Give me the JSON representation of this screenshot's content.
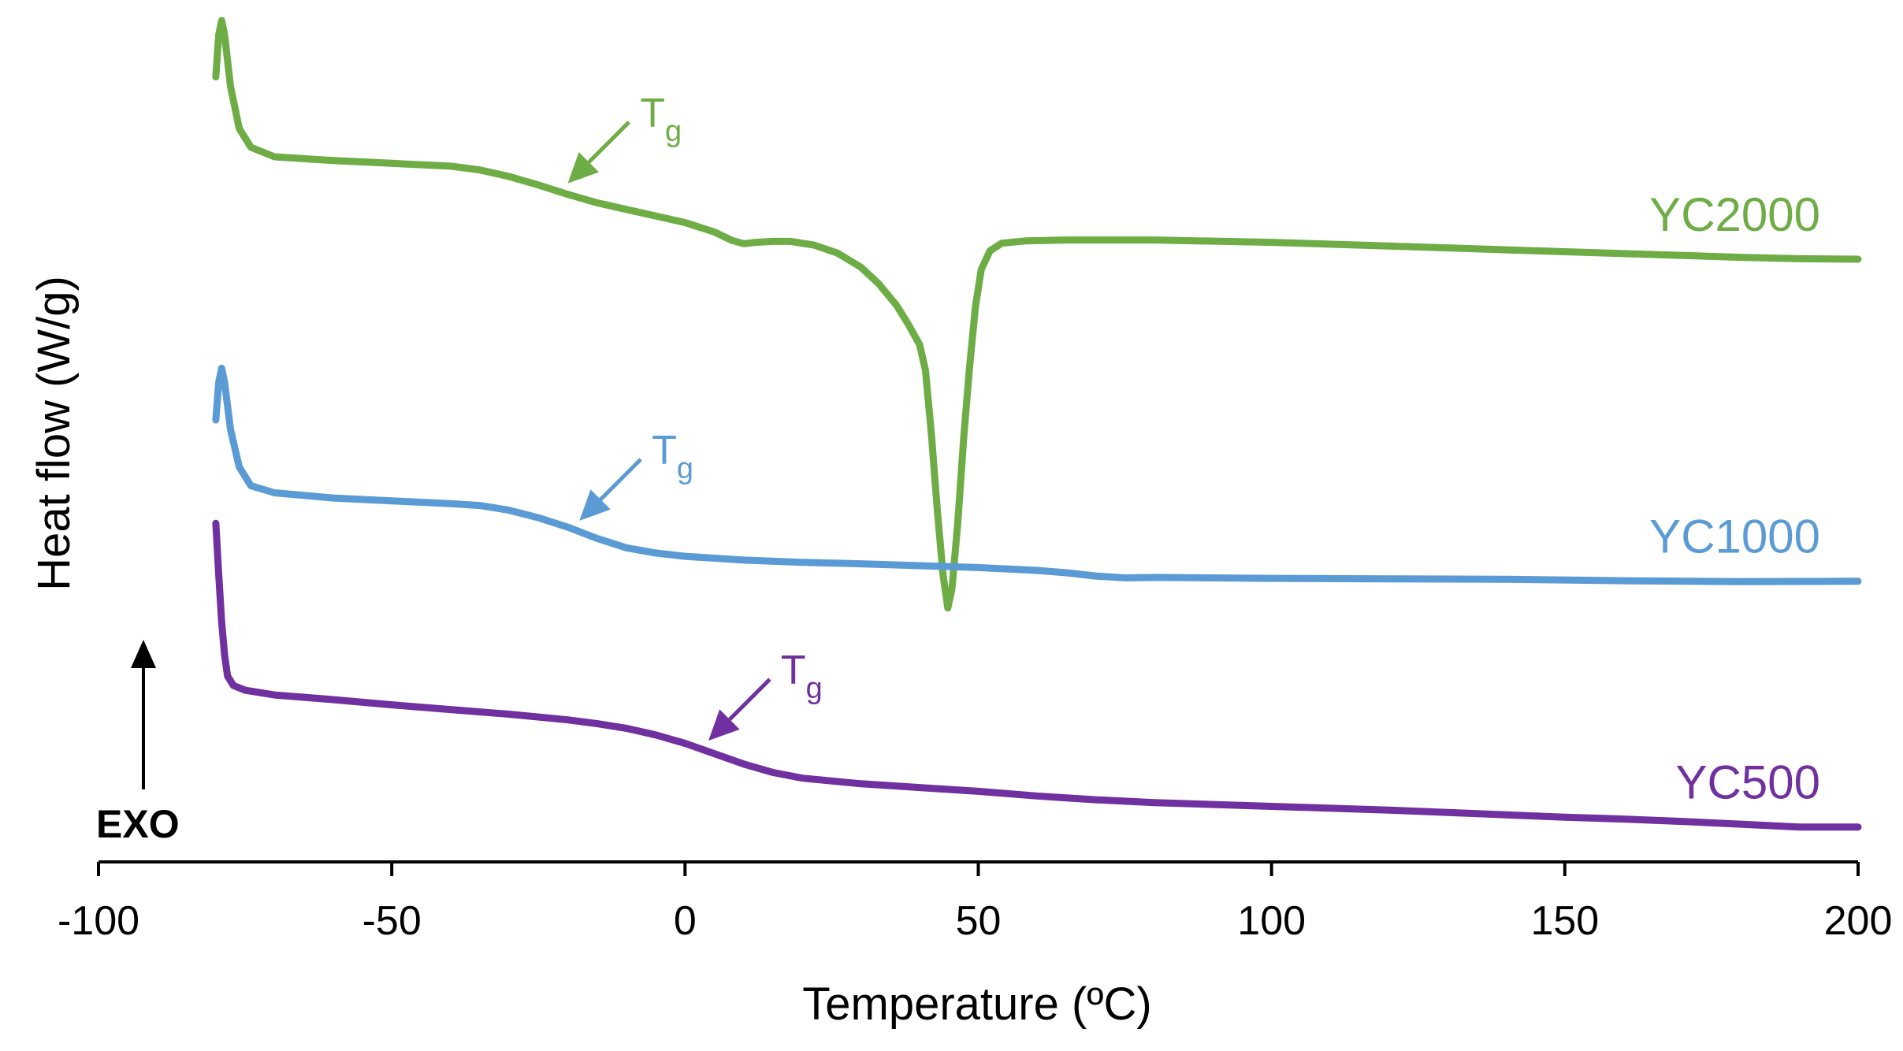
{
  "chart_data": {
    "type": "line",
    "title": "",
    "xlabel": "Temperature  (ºC)",
    "ylabel": "Heat flow (W/g)",
    "xlim": [
      -100,
      200
    ],
    "x_ticks": [
      -100,
      -50,
      0,
      50,
      100,
      150,
      200
    ],
    "y_ticks_shown": false,
    "grid": false,
    "legend": "inline labels at right end of each curve",
    "exo_indicator": {
      "label": "EXO",
      "direction": "up"
    },
    "tg_label": {
      "main": "T",
      "sub": "g"
    },
    "series": [
      {
        "name": "YC2000",
        "color": "#6EAD45",
        "tg_at": -20,
        "points": [
          [
            -80,
            -0.3
          ],
          [
            -79.5,
            0.6
          ],
          [
            -79,
            0.9
          ],
          [
            -78.5,
            0.6
          ],
          [
            -77.5,
            -0.5
          ],
          [
            -76,
            -1.4
          ],
          [
            -74,
            -1.8
          ],
          [
            -70,
            -2.0
          ],
          [
            -60,
            -2.08
          ],
          [
            -50,
            -2.14
          ],
          [
            -40,
            -2.2
          ],
          [
            -35,
            -2.28
          ],
          [
            -30,
            -2.42
          ],
          [
            -25,
            -2.6
          ],
          [
            -20,
            -2.8
          ],
          [
            -15,
            -2.98
          ],
          [
            -10,
            -3.12
          ],
          [
            -5,
            -3.26
          ],
          [
            0,
            -3.4
          ],
          [
            5,
            -3.6
          ],
          [
            8,
            -3.78
          ],
          [
            10,
            -3.85
          ],
          [
            12,
            -3.82
          ],
          [
            15,
            -3.8
          ],
          [
            18,
            -3.8
          ],
          [
            22,
            -3.88
          ],
          [
            26,
            -4.05
          ],
          [
            30,
            -4.35
          ],
          [
            33,
            -4.7
          ],
          [
            36,
            -5.15
          ],
          [
            38,
            -5.55
          ],
          [
            40,
            -6.0
          ],
          [
            41,
            -6.55
          ],
          [
            42,
            -7.9
          ],
          [
            43,
            -9.5
          ],
          [
            44,
            -10.9
          ],
          [
            44.8,
            -11.6
          ],
          [
            45.5,
            -11.2
          ],
          [
            46.5,
            -9.8
          ],
          [
            47.5,
            -8.0
          ],
          [
            48.5,
            -6.5
          ],
          [
            49.5,
            -5.2
          ],
          [
            50.5,
            -4.4
          ],
          [
            52,
            -4.0
          ],
          [
            54,
            -3.84
          ],
          [
            58,
            -3.79
          ],
          [
            65,
            -3.77
          ],
          [
            80,
            -3.77
          ],
          [
            100,
            -3.82
          ],
          [
            120,
            -3.9
          ],
          [
            140,
            -3.98
          ],
          [
            160,
            -4.06
          ],
          [
            180,
            -4.14
          ],
          [
            190,
            -4.17
          ],
          [
            200,
            -4.18
          ]
        ]
      },
      {
        "name": "YC1000",
        "color": "#5B9BD5",
        "tg_at": -18,
        "points": [
          [
            -80,
            -7.6
          ],
          [
            -79.5,
            -6.8
          ],
          [
            -79,
            -6.5
          ],
          [
            -78.5,
            -6.8
          ],
          [
            -77.5,
            -7.8
          ],
          [
            -76,
            -8.6
          ],
          [
            -74,
            -9.0
          ],
          [
            -70,
            -9.15
          ],
          [
            -60,
            -9.26
          ],
          [
            -50,
            -9.32
          ],
          [
            -40,
            -9.38
          ],
          [
            -35,
            -9.42
          ],
          [
            -30,
            -9.52
          ],
          [
            -25,
            -9.68
          ],
          [
            -20,
            -9.88
          ],
          [
            -15,
            -10.12
          ],
          [
            -10,
            -10.32
          ],
          [
            -5,
            -10.43
          ],
          [
            0,
            -10.5
          ],
          [
            10,
            -10.58
          ],
          [
            20,
            -10.63
          ],
          [
            30,
            -10.66
          ],
          [
            40,
            -10.7
          ],
          [
            50,
            -10.74
          ],
          [
            60,
            -10.8
          ],
          [
            65,
            -10.85
          ],
          [
            70,
            -10.92
          ],
          [
            75,
            -10.96
          ],
          [
            80,
            -10.95
          ],
          [
            100,
            -10.97
          ],
          [
            120,
            -10.98
          ],
          [
            140,
            -10.99
          ],
          [
            160,
            -11.02
          ],
          [
            180,
            -11.04
          ],
          [
            200,
            -11.03
          ]
        ]
      },
      {
        "name": "YC500",
        "color": "#7030A0",
        "tg_at": 4,
        "points": [
          [
            -80,
            -9.8
          ],
          [
            -79.5,
            -10.9
          ],
          [
            -79,
            -11.9
          ],
          [
            -78.5,
            -12.6
          ],
          [
            -78,
            -13.05
          ],
          [
            -77,
            -13.25
          ],
          [
            -75,
            -13.35
          ],
          [
            -70,
            -13.45
          ],
          [
            -60,
            -13.55
          ],
          [
            -50,
            -13.66
          ],
          [
            -40,
            -13.76
          ],
          [
            -30,
            -13.86
          ],
          [
            -20,
            -13.98
          ],
          [
            -15,
            -14.06
          ],
          [
            -10,
            -14.16
          ],
          [
            -5,
            -14.3
          ],
          [
            0,
            -14.48
          ],
          [
            5,
            -14.7
          ],
          [
            10,
            -14.92
          ],
          [
            15,
            -15.1
          ],
          [
            20,
            -15.22
          ],
          [
            30,
            -15.34
          ],
          [
            40,
            -15.42
          ],
          [
            50,
            -15.5
          ],
          [
            60,
            -15.6
          ],
          [
            70,
            -15.68
          ],
          [
            80,
            -15.74
          ],
          [
            100,
            -15.82
          ],
          [
            120,
            -15.9
          ],
          [
            140,
            -16.0
          ],
          [
            150,
            -16.05
          ],
          [
            160,
            -16.09
          ],
          [
            170,
            -16.14
          ],
          [
            180,
            -16.2
          ],
          [
            190,
            -16.26
          ],
          [
            200,
            -16.26
          ]
        ]
      }
    ]
  }
}
